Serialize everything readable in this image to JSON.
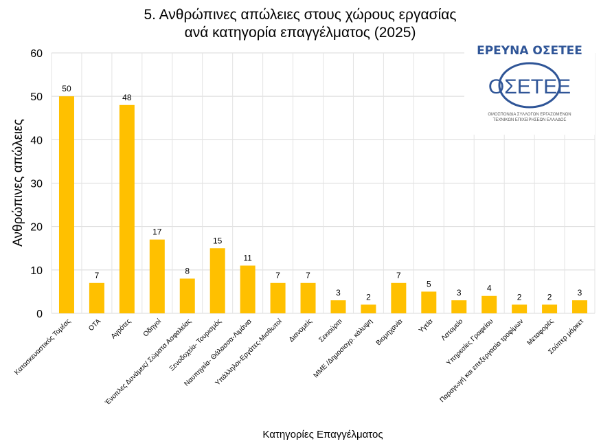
{
  "chart_data": {
    "type": "bar",
    "title": [
      "5. Ανθρώπινες απώλειες στους χώρους εργασίας",
      "ανά κατηγορία επαγγέλματος (2025)"
    ],
    "xlabel": "Κατηγορίες Επαγγέλματος",
    "ylabel": "Ανθρώπινες απώλειες",
    "ylim": [
      0,
      60
    ],
    "yticks": [
      0,
      10,
      20,
      30,
      40,
      50,
      60
    ],
    "grid": true,
    "bar_color": "#ffc000",
    "categories": [
      "Κατασκευαστικός Τομέας",
      "ΟΤΑ",
      "Αγρότες",
      "Οδηγοί",
      "Ένοπλες Δυνάμεις/ Σώματα Ασφαλείας",
      "Ξενοδοχεία- Τουρισμός",
      "Ναυπηγεία- Θάλασσα-Λιμάνια",
      "Υπάλληλοι-Εργάτες-Μισθωτοί",
      "Διανομείς",
      "Σεκιούριτι",
      "ΜΜΕ /Δημοσιογρ. κάλυψη",
      "Βιομηχανία",
      "Υγεία",
      "Λατομείο",
      "Υπηρεσίες Γραφείου",
      "Παραγωγή και επεξεργασία τροφίμων",
      "Μεταφορές",
      "Σούπερ μάρκετ"
    ],
    "values": [
      50,
      7,
      48,
      17,
      8,
      15,
      11,
      7,
      7,
      3,
      2,
      7,
      5,
      3,
      4,
      2,
      2,
      3
    ]
  },
  "logo": {
    "title": "ΕΡΕΥΝΑ ΟΣΕΤΕΕ",
    "mark": "ΟΣΕΤΕΕ",
    "subtitle": [
      "ΟΜΟΣΠΟΝΔΙΑ ΣΥΛΛΟΓΩΝ ΕΡΓΑΖΟΜΕΝΩΝ",
      "ΤΕΧΝΙΚΩΝ ΕΠΙΧΕΙΡΗΣΕΩΝ ΕΛΛΑΔΟΣ"
    ],
    "color": "#2f5597"
  }
}
